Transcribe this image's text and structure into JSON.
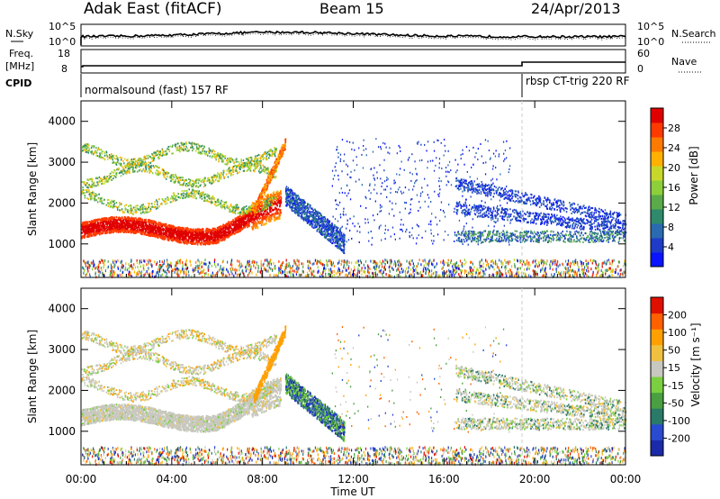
{
  "header": {
    "station": "Adak East (fitACF)",
    "beam": "Beam 15",
    "date": "24/Apr/2013"
  },
  "strips": {
    "nsky_label": "N.Sky",
    "nsearch_label": "N.Search",
    "nsky_ticks": [
      "10^5",
      "10^0"
    ],
    "nsky_right_ticks": [
      "10^5",
      "10^0"
    ],
    "freq_label_1": "Freq.",
    "freq_label_2": "[MHz]",
    "freq_ticks": [
      "18",
      "8"
    ],
    "nave_label": "Nave",
    "nave_ticks": [
      "60",
      "0"
    ],
    "cpid_label": "CPID",
    "cpid_1": "normalsound (fast) 157 RF",
    "cpid_2": "rbsp CT-trig 220 RF"
  },
  "chart_data": [
    {
      "type": "heatmap",
      "name": "power",
      "ylabel": "Slant Range [km]",
      "yticks": [
        "4000",
        "3000",
        "2000",
        "1000"
      ],
      "ylim": [
        180,
        4500
      ],
      "colorbar_label": "Power [dB]",
      "colorbar_ticks": [
        "28",
        "24",
        "20",
        "16",
        "12",
        "8",
        "4"
      ],
      "colorscale": [
        "#0a14ff",
        "#1e3cc8",
        "#2a6ab0",
        "#2e8a6a",
        "#5aaa4a",
        "#8ccf3a",
        "#c8d82a",
        "#ffb000",
        "#ff7a00",
        "#ff3a00",
        "#e00000"
      ]
    },
    {
      "type": "heatmap",
      "name": "velocity",
      "ylabel": "Slant Range [km]",
      "yticks": [
        "4000",
        "3000",
        "2000",
        "1000"
      ],
      "ylim": [
        180,
        4500
      ],
      "colorbar_label": "Velocity [m s⁻¹]",
      "colorbar_ticks": [
        "200",
        "100",
        "50",
        "15",
        "-15",
        "-50",
        "-100",
        "-200"
      ],
      "colorscale": [
        "#1a2aa8",
        "#2a4ad0",
        "#2a7a6a",
        "#4aa040",
        "#7ad040",
        "#c8c8c0",
        "#f0c040",
        "#ffa000",
        "#ff6000",
        "#e01000"
      ]
    }
  ],
  "xaxis": {
    "ticks": [
      "00:00",
      "04:00",
      "08:00",
      "12:00",
      "16:00",
      "20:00",
      "00:00"
    ],
    "label": "Time UT"
  }
}
